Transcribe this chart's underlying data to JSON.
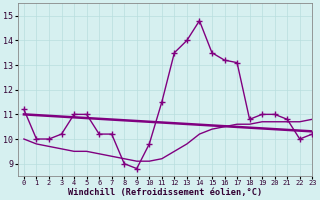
{
  "xlabel": "Windchill (Refroidissement éolien,°C)",
  "background_color": "#d6f0f0",
  "line_color": "#800080",
  "grid_color": "#b8dede",
  "xlim": [
    -0.5,
    23
  ],
  "ylim": [
    8.5,
    15.5
  ],
  "yticks": [
    9,
    10,
    11,
    12,
    13,
    14,
    15
  ],
  "xticks": [
    0,
    1,
    2,
    3,
    4,
    5,
    6,
    7,
    8,
    9,
    10,
    11,
    12,
    13,
    14,
    15,
    16,
    17,
    18,
    19,
    20,
    21,
    22,
    23
  ],
  "x": [
    0,
    1,
    2,
    3,
    4,
    5,
    6,
    7,
    8,
    9,
    10,
    11,
    12,
    13,
    14,
    15,
    16,
    17,
    18,
    19,
    20,
    21,
    22,
    23
  ],
  "y_main": [
    11.2,
    10.0,
    10.0,
    10.2,
    11.0,
    11.0,
    10.2,
    10.2,
    9.0,
    8.8,
    9.8,
    11.5,
    13.5,
    14.0,
    14.8,
    13.5,
    13.2,
    13.1,
    10.8,
    11.0,
    11.0,
    10.8,
    10.0,
    10.2
  ],
  "y_smooth": [
    10.0,
    9.8,
    9.7,
    9.6,
    9.5,
    9.5,
    9.4,
    9.3,
    9.2,
    9.1,
    9.1,
    9.2,
    9.5,
    9.8,
    10.2,
    10.4,
    10.5,
    10.6,
    10.6,
    10.7,
    10.7,
    10.7,
    10.7,
    10.8
  ],
  "y_linear": [
    11.0,
    10.97,
    10.94,
    10.91,
    10.88,
    10.85,
    10.82,
    10.79,
    10.76,
    10.73,
    10.7,
    10.67,
    10.64,
    10.61,
    10.58,
    10.55,
    10.52,
    10.49,
    10.46,
    10.43,
    10.4,
    10.37,
    10.34,
    10.31
  ]
}
